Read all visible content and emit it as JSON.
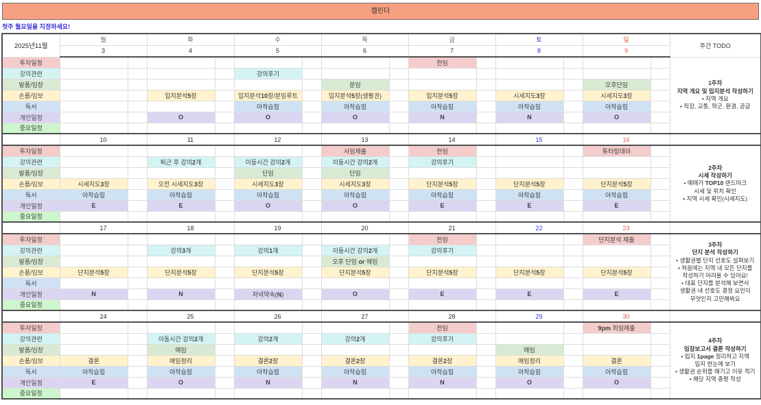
{
  "title": "캘린더",
  "note": "첫주 월요일을 지정하세요!",
  "month_label": "2025년11월",
  "todo_header": "주간 TODO",
  "day_headers": [
    "월",
    "화",
    "수",
    "목",
    "금",
    "토",
    "일"
  ],
  "row_labels": [
    "투자일정",
    "강의관련",
    "발품/임장",
    "손품/임보",
    "독서",
    "개인일정",
    "중요일정"
  ],
  "colors": {
    "title_bg": "#F6A081",
    "note_text": "#3A2FD6",
    "weekday_text": "#5b5b5b",
    "saturday": "#2B36CF",
    "sunday": "#E2594E",
    "category_fills": [
      "#F4CCCC",
      "#D4F3F3",
      "#D9EAD3",
      "#FFF2CC",
      "#CFE2F3",
      "#DCD5F2",
      "#CDF6CD"
    ]
  },
  "weeks": [
    {
      "dates": [
        "3",
        "4",
        "5",
        "6",
        "7",
        "8",
        "9"
      ],
      "rows": [
        [
          "",
          "",
          "",
          "",
          "천임",
          "",
          ""
        ],
        [
          "",
          "",
          "강의후기",
          "",
          "",
          "",
          ""
        ],
        [
          "",
          "",
          "",
          "분임",
          "",
          "",
          "오후단임"
        ],
        [
          "",
          "입지분석5장",
          "입지분석10장/분임루트",
          "입지분석5장(생활권)",
          "입지분석5장",
          "시세지도3장",
          "시세지도3장"
        ],
        [
          "",
          "",
          "아작습힘",
          "아작습힘",
          "아작습힘",
          "아작습힘",
          "아작습힘"
        ],
        [
          "",
          "O",
          "O",
          "O",
          "N",
          "N",
          "O"
        ],
        [
          "",
          "",
          "",
          "",
          "",
          "",
          ""
        ]
      ],
      "todo": {
        "bold_count": 2,
        "lines": [
          "1주차",
          "지역 개요 및 입지분석 작성하기",
          "• 지역 개요",
          "• 직장, 교통, 학군, 환경, 공급"
        ]
      }
    },
    {
      "dates": [
        "10",
        "11",
        "12",
        "13",
        "14",
        "15",
        "16"
      ],
      "rows": [
        [
          "",
          "",
          "",
          "사임제출",
          "천임",
          "",
          "튜터링데이"
        ],
        [
          "",
          "퇴근 후 강의2개",
          "이동시간 강의2개",
          "이동시간 강의2개",
          "강의후기",
          "",
          ""
        ],
        [
          "",
          "",
          "단임",
          "단임",
          "",
          "",
          ""
        ],
        [
          "시세지도3장",
          "오전 시세지도3장",
          "시세지도3장",
          "시세지도3장",
          "단지분석5장",
          "단지분석5장",
          "단지분석5장"
        ],
        [
          "아작습힘",
          "아작습힘",
          "아작습힘",
          "아작습힘",
          "아작습힘",
          "아작습힘",
          "아작습힘"
        ],
        [
          "E",
          "E",
          "O",
          "O",
          "E",
          "E",
          "E"
        ],
        [
          "",
          "",
          "",
          "",
          "",
          "",
          ""
        ]
      ],
      "todo": {
        "bold_count": 2,
        "lines": [
          "2주차",
          "시세 작성하기",
          "• 매매가 TOP10 랜드마크",
          "시세 및 위치 확인",
          "• 지역 시세 확인(시세지도)"
        ]
      }
    },
    {
      "dates": [
        "17",
        "18",
        "19",
        "20",
        "21",
        "22",
        "23"
      ],
      "rows": [
        [
          "",
          "",
          "",
          "",
          "천임",
          "",
          "단지분석 제출"
        ],
        [
          "",
          "강의3개",
          "강의1개",
          "이동시간 강의2개",
          "강의후기",
          "",
          ""
        ],
        [
          "",
          "",
          "",
          "오후 단임 or 매임",
          "",
          "",
          ""
        ],
        [
          "단지분석5장",
          "단지분석5장",
          "단지분석5장",
          "단지분석5장",
          "단지분석5장",
          "단지분석5장",
          "단지분석5장"
        ],
        [
          "",
          "",
          "",
          "",
          "",
          "",
          ""
        ],
        [
          "N",
          "N",
          "저녁약속(N)",
          "O",
          "E",
          "E",
          "E"
        ],
        [
          "",
          "",
          "",
          "",
          "",
          "",
          ""
        ]
      ],
      "todo": {
        "bold_count": 2,
        "lines": [
          "3주차",
          "단지 분석 작성하기",
          "• 생활권별 단지 선호도 살펴보기",
          "• 처음에는 지역 내 모든 단지를",
          "작성하기 어려울 수 있어요!",
          "• 대표 단지를 분석해 보면서",
          "생활권 내 선호도 결정 요인이",
          "무엇인지 고민해봐요"
        ]
      }
    },
    {
      "dates": [
        "24",
        "25",
        "26",
        "27",
        "28",
        "29",
        "30"
      ],
      "rows": [
        [
          "",
          "",
          "",
          "",
          "천임",
          "",
          "9pm 최임제출"
        ],
        [
          "",
          "이동시간 강의2개",
          "강의2개",
          "강의2개",
          "강의후기",
          "",
          ""
        ],
        [
          "",
          "매임",
          "",
          "",
          "",
          "매임",
          ""
        ],
        [
          "결론",
          "매임정리",
          "결론2장",
          "결론2장",
          "결론2장",
          "매임정리",
          "결론"
        ],
        [
          "아작습힘",
          "아작습힘",
          "아작습힘",
          "아작습힘",
          "아작습힘",
          "아작습힘",
          "아작습힘"
        ],
        [
          "E",
          "O",
          "N",
          "N",
          "N",
          "O",
          "O"
        ],
        [
          "",
          "",
          "",
          "",
          "",
          "",
          ""
        ]
      ],
      "todo": {
        "bold_count": 2,
        "lines": [
          "4주차",
          "임장보고서 결론 작성하기",
          "• 입지 1page 정리하고 지역",
          "입지 한눈에 보기",
          "• 생활권 순위를 매기고 이유 적기",
          "• 해당 지역 총평 작성"
        ]
      }
    }
  ]
}
